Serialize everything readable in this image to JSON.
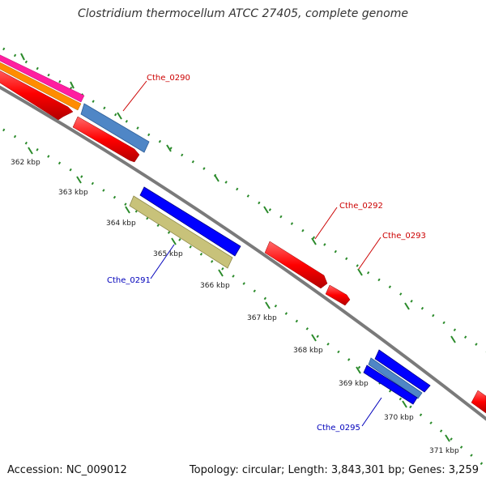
{
  "title": "Clostridium thermocellum ATCC 27405, complete genome",
  "footer": {
    "accession": "Accession: NC_009012",
    "stats": "Topology: circular; Length: 3,843,301 bp; Genes: 3,259"
  },
  "colors": {
    "backbone": "#808080",
    "tick": "#2a8a2a",
    "forward_label": "#cc0000",
    "reverse_label": "#0000bb",
    "red_feature": "#ff0000",
    "blue_feature": "#0000ff",
    "steelblue_feature": "#4f86c6",
    "khaki_feature": "#c8c27a",
    "magenta_feature": "#ff1ea0",
    "orange_feature": "#ff8c00"
  },
  "ticks": [
    {
      "label": "362 kbp"
    },
    {
      "label": "363 kbp"
    },
    {
      "label": "364 kbp"
    },
    {
      "label": "365 kbp"
    },
    {
      "label": "366 kbp"
    },
    {
      "label": "367 kbp"
    },
    {
      "label": "368 kbp"
    },
    {
      "label": "369 kbp"
    },
    {
      "label": "370 kbp"
    },
    {
      "label": "371 kbp"
    }
  ],
  "gene_labels": [
    {
      "text": "Cthe_0290",
      "strand": "forward"
    },
    {
      "text": "Cthe_0291",
      "strand": "reverse"
    },
    {
      "text": "Cthe_0292",
      "strand": "forward"
    },
    {
      "text": "Cthe_0293",
      "strand": "forward"
    },
    {
      "text": "Cthe_0295",
      "strand": "reverse"
    }
  ]
}
